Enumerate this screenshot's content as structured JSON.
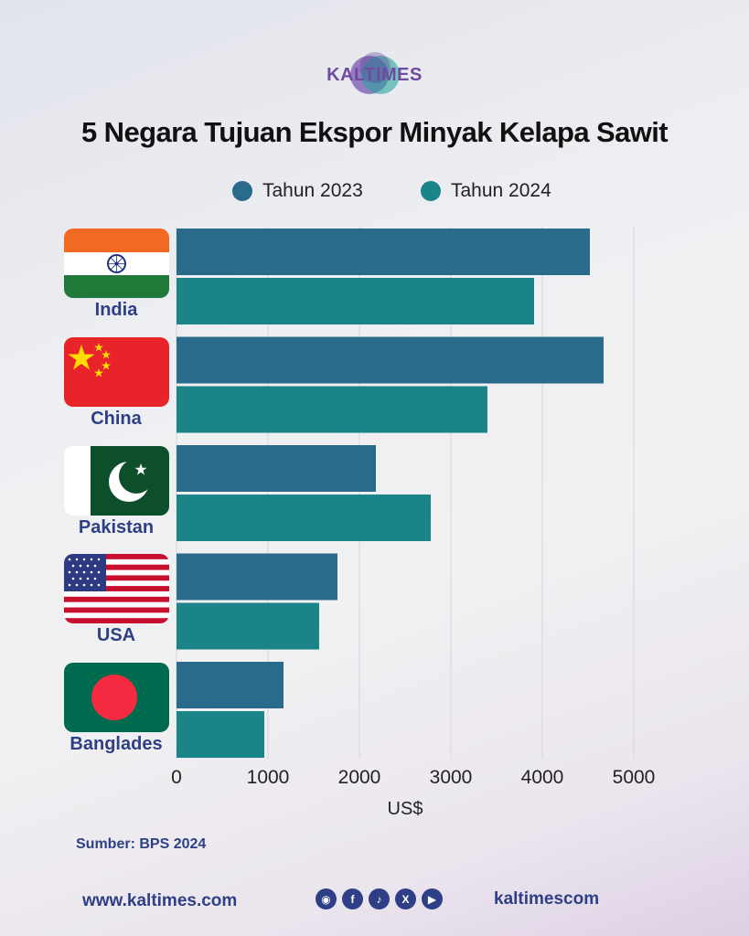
{
  "brand": {
    "logo_text": "KALTIMES"
  },
  "chart_data": {
    "type": "bar",
    "orientation": "horizontal",
    "title": "5 Negara Tujuan Ekspor Minyak Kelapa Sawit",
    "categories": [
      "India",
      "China",
      "Pakistan",
      "USA",
      "Banglades"
    ],
    "series": [
      {
        "name": "Tahun 2023",
        "color": "#2a6a8a",
        "values": [
          4520,
          4670,
          2180,
          1760,
          1170
        ]
      },
      {
        "name": "Tahun 2024",
        "color": "#1a8488",
        "values": [
          3910,
          3400,
          2780,
          1560,
          960
        ]
      }
    ],
    "xlabel": "US$",
    "ylabel": "",
    "xlim": [
      0,
      5000
    ],
    "xticks": [
      "0",
      "1000",
      "2000",
      "3000",
      "4000",
      "5000"
    ],
    "grid": "vertical",
    "legend_position": "top"
  },
  "flags": {
    "India": "india-flag-icon",
    "China": "china-flag-icon",
    "Pakistan": "pakistan-flag-icon",
    "USA": "usa-flag-icon",
    "Banglades": "bangladesh-flag-icon"
  },
  "source": "Sumber: BPS 2024",
  "footer": {
    "website": "www.kaltimes.com",
    "handle": "kaltimescom",
    "socials": [
      "instagram-icon",
      "facebook-icon",
      "tiktok-icon",
      "x-icon",
      "youtube-icon"
    ]
  }
}
